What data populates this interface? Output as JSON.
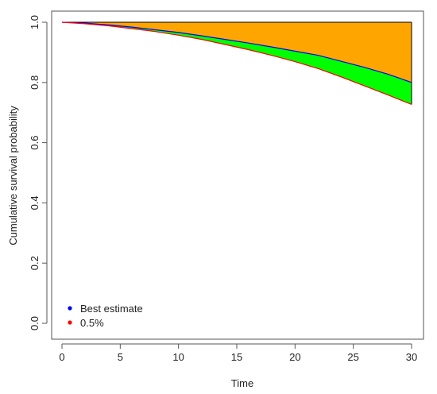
{
  "chart_data": {
    "type": "area",
    "xlabel": "Time",
    "ylabel": "Cumulative survival probability",
    "xlim": [
      0,
      30
    ],
    "ylim": [
      0,
      1
    ],
    "x_ticks": [
      "0",
      "5",
      "10",
      "15",
      "20",
      "25",
      "30"
    ],
    "y_ticks": [
      "0.0",
      "0.2",
      "0.4",
      "0.6",
      "0.8",
      "1.0"
    ],
    "grid": false,
    "legend_position": "bottom-left",
    "x": [
      0,
      2,
      4,
      6,
      8,
      10,
      12,
      14,
      16,
      18,
      20,
      22,
      24,
      26,
      28,
      30
    ],
    "series": [
      {
        "name": "Best estimate",
        "color": "#0000ff",
        "values": [
          1.0,
          0.997,
          0.991,
          0.984,
          0.975,
          0.966,
          0.955,
          0.943,
          0.931,
          0.918,
          0.904,
          0.89,
          0.87,
          0.85,
          0.827,
          0.8
        ]
      },
      {
        "name": "0.5%",
        "color": "#ff0000",
        "values": [
          1.0,
          0.995,
          0.988,
          0.979,
          0.969,
          0.957,
          0.943,
          0.926,
          0.909,
          0.89,
          0.869,
          0.846,
          0.818,
          0.788,
          0.758,
          0.727
        ]
      }
    ],
    "fills": [
      {
        "between": [
          "top",
          "Best estimate"
        ],
        "color": "#ffa500"
      },
      {
        "between": [
          "Best estimate",
          "0.5%"
        ],
        "color": "#00ff00"
      }
    ],
    "top_boundary": 1.0
  }
}
